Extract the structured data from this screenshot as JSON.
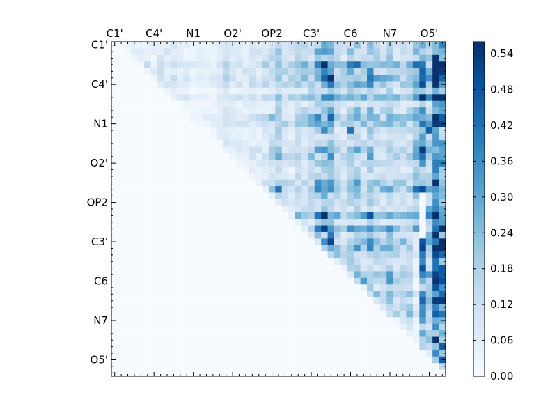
{
  "chart_data": {
    "type": "heatmap",
    "title": "",
    "xlabel": "",
    "ylabel": "",
    "matrix_size": 51,
    "x_tick_labels": [
      "C1'",
      "C4'",
      "N1",
      "O2'",
      "OP2",
      "C3'",
      "C6",
      "N7",
      "O5'"
    ],
    "y_tick_labels": [
      "C1'",
      "C4'",
      "N1",
      "O2'",
      "OP2",
      "C3'",
      "C6",
      "N7",
      "O5'"
    ],
    "label_positions": [
      0.5,
      6.5,
      12.5,
      18.5,
      24.5,
      30.5,
      36.5,
      42.5,
      48.5
    ],
    "colorbar": {
      "colormap": "Blues",
      "vmin": 0.0,
      "vmax": 0.56,
      "tick_labels": [
        "0.00",
        "0.06",
        "0.12",
        "0.18",
        "0.24",
        "0.30",
        "0.36",
        "0.42",
        "0.48",
        "0.54"
      ]
    },
    "triangle": "upper",
    "estimated_values": "approximate, upper-triangle only; lower triangle near 0",
    "column_profile": [
      0.01,
      0.06,
      0.07,
      0.08,
      0.06,
      0.08,
      0.05,
      0.09,
      0.08,
      0.09,
      0.05,
      0.05,
      0.04,
      0.05,
      0.04,
      0.05,
      0.07,
      0.09,
      0.08,
      0.07,
      0.08,
      0.09,
      0.09,
      0.1,
      0.14,
      0.22,
      0.12,
      0.11,
      0.16,
      0.14,
      0.18,
      0.22,
      0.28,
      0.3,
      0.16,
      0.13,
      0.2,
      0.22,
      0.16,
      0.23,
      0.16,
      0.15,
      0.2,
      0.14,
      0.14,
      0.16,
      0.24,
      0.36,
      0.2,
      0.48,
      0.38
    ],
    "strong_cells": [
      {
        "row": 20,
        "col": 49,
        "value": 0.3
      },
      {
        "row": 22,
        "col": 49,
        "value": 0.34
      },
      {
        "row": 25,
        "col": 48,
        "value": 0.3
      },
      {
        "row": 25,
        "col": 49,
        "value": 0.38
      },
      {
        "row": 27,
        "col": 49,
        "value": 0.36
      },
      {
        "row": 30,
        "col": 49,
        "value": 0.4
      },
      {
        "row": 32,
        "col": 47,
        "value": 0.4
      },
      {
        "row": 32,
        "col": 49,
        "value": 0.5
      },
      {
        "row": 32,
        "col": 50,
        "value": 0.44
      },
      {
        "row": 34,
        "col": 49,
        "value": 0.42
      },
      {
        "row": 35,
        "col": 47,
        "value": 0.38
      },
      {
        "row": 35,
        "col": 49,
        "value": 0.52
      },
      {
        "row": 35,
        "col": 50,
        "value": 0.46
      },
      {
        "row": 37,
        "col": 49,
        "value": 0.48
      },
      {
        "row": 39,
        "col": 47,
        "value": 0.44
      },
      {
        "row": 39,
        "col": 49,
        "value": 0.54
      },
      {
        "row": 39,
        "col": 50,
        "value": 0.54
      },
      {
        "row": 41,
        "col": 49,
        "value": 0.46
      },
      {
        "row": 43,
        "col": 49,
        "value": 0.36
      },
      {
        "row": 46,
        "col": 47,
        "value": 0.44
      },
      {
        "row": 48,
        "col": 48,
        "value": 0.54
      },
      {
        "row": 48,
        "col": 49,
        "value": 0.5
      },
      {
        "row": 48,
        "col": 50,
        "value": 0.46
      },
      {
        "row": 13,
        "col": 48,
        "value": 0.46
      },
      {
        "row": 13,
        "col": 36,
        "value": 0.42
      },
      {
        "row": 13,
        "col": 32,
        "value": 0.36
      },
      {
        "row": 8,
        "col": 32,
        "value": 0.36
      },
      {
        "row": 8,
        "col": 48,
        "value": 0.38
      }
    ]
  }
}
